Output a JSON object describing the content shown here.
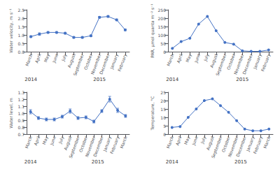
{
  "chart_data": [
    {
      "type": "line",
      "categories": [
        "March",
        "April",
        "May",
        "June",
        "July",
        "August",
        "September",
        "October",
        "November",
        "December",
        "January",
        "February"
      ],
      "values": [
        0.9,
        1.05,
        1.15,
        1.15,
        1.1,
        0.85,
        0.85,
        0.95,
        2.05,
        2.1,
        1.9,
        1.3
      ],
      "errors": [
        0.05,
        0.07,
        0.05,
        0.05,
        0.05,
        0.05,
        0.05,
        0.05,
        0.05,
        0.05,
        0.05,
        0.05
      ],
      "color": "#4472C4",
      "marker": "circle",
      "ylabel": "Water velocity, m s⁻¹",
      "ylim": [
        0.0,
        2.5
      ],
      "yticks": [
        {
          "value": 0.0,
          "label": "0.0"
        },
        0.5,
        {
          "value": 1.0,
          "label": "1.0"
        },
        1.5,
        {
          "value": 2.0,
          "label": "2.0"
        },
        2.5
      ],
      "grid": false,
      "annotations": [
        {
          "text": "2014",
          "x": 0
        },
        {
          "text": "2015",
          "x": 8
        }
      ]
    },
    {
      "type": "line",
      "categories": [
        "March",
        "April",
        "May",
        "June",
        "July",
        "August",
        "September",
        "October",
        "November",
        "December",
        "January",
        "February"
      ],
      "values": [
        20,
        60,
        80,
        165,
        210,
        125,
        55,
        45,
        5,
        2,
        2,
        10
      ],
      "color": "#4472C4",
      "marker": "circle",
      "ylabel": "PAR, μmol quanta m⁻² s⁻¹",
      "ylim": [
        0,
        250
      ],
      "yticks": [
        0,
        50,
        100,
        150,
        200,
        250
      ],
      "grid": false,
      "annotations": [
        {
          "text": "2014",
          "x": 0
        },
        {
          "text": "2015",
          "x": 8
        }
      ]
    },
    {
      "type": "line",
      "categories": [
        "March",
        "April",
        "May",
        "June",
        "July",
        "August",
        "September",
        "October",
        "November",
        "December",
        "January",
        "February",
        "March"
      ],
      "values": [
        1.02,
        0.93,
        0.91,
        0.91,
        0.95,
        1.03,
        0.93,
        0.94,
        0.88,
        1.03,
        1.2,
        1.04,
        0.96
      ],
      "errors": [
        0.03,
        0.02,
        0.02,
        0.02,
        0.02,
        0.03,
        0.02,
        0.02,
        0.02,
        0.02,
        0.04,
        0.03,
        0.02
      ],
      "color": "#4472C4",
      "marker": "circle",
      "ylabel": "Water level, m",
      "ylim": [
        0.7,
        1.3
      ],
      "yticks": [
        0.7,
        0.8,
        0.9,
        {
          "value": 1.0,
          "label": "1.0"
        },
        1.1,
        1.2,
        1.3
      ],
      "grid": false,
      "annotations": [
        {
          "text": "2014",
          "x": 0
        },
        {
          "text": "2015",
          "x": 8.5
        }
      ]
    },
    {
      "type": "line",
      "categories": [
        "March",
        "April",
        "May",
        "June",
        "July",
        "August",
        "September",
        "October",
        "November",
        "December",
        "January",
        "February",
        "March"
      ],
      "values": [
        4,
        4.5,
        10,
        15,
        20,
        21,
        17,
        13,
        8,
        3,
        2,
        2,
        3
      ],
      "color": "#4472C4",
      "marker": "circle",
      "ylabel": "Temperature, °C",
      "ylim": [
        0,
        25
      ],
      "yticks": [
        0,
        5,
        10,
        15,
        20,
        25
      ],
      "grid": false,
      "annotations": [
        {
          "text": "2014",
          "x": 0
        },
        {
          "text": "2015",
          "x": 8.5
        }
      ]
    }
  ]
}
